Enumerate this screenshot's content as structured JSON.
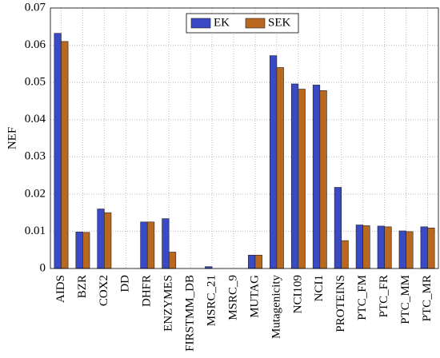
{
  "chart_data": {
    "type": "bar",
    "y_label": "NEF",
    "categories": [
      "AIDS",
      "BZR",
      "COX2",
      "DD",
      "DHFR",
      "ENZYMES",
      "FIRSTMM_DB",
      "MSRC_21",
      "MSRC_9",
      "MUTAG",
      "Mutagenicity",
      "NCI109",
      "NCI1",
      "PROTEINS",
      "PTC_FM",
      "PTC_FR",
      "PTC_MM",
      "PTC_MR"
    ],
    "series": [
      {
        "name": "EK",
        "color": "#3a49c4",
        "values": [
          0.0632,
          0.0098,
          0.016,
          0,
          0.0125,
          0.0134,
          0,
          0.0005,
          0,
          0.0036,
          0.0572,
          0.0496,
          0.0493,
          0.0218,
          0.0117,
          0.0114,
          0.0101,
          0.0112
        ]
      },
      {
        "name": "SEK",
        "color": "#b8681f",
        "values": [
          0.061,
          0.0097,
          0.015,
          0,
          0.0125,
          0.0044,
          0,
          0,
          0,
          0.0036,
          0.054,
          0.0482,
          0.0478,
          0.0075,
          0.0115,
          0.0112,
          0.0099,
          0.0109
        ]
      }
    ],
    "ylim": [
      0,
      0.07
    ],
    "yticks": [
      0,
      0.01,
      0.02,
      0.03,
      0.04,
      0.05,
      0.06,
      0.07
    ],
    "grid": true,
    "legend": "top"
  }
}
